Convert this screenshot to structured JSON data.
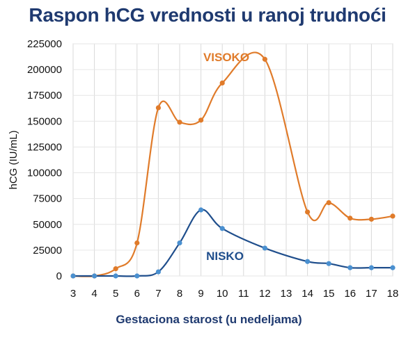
{
  "chart_data": {
    "type": "scatter",
    "title": "Raspon hCG vrednosti u ranoj trudnoći",
    "xlabel": "Gestaciona starost (u nedeljama)",
    "ylabel": "hCG (IU/mL)",
    "x_ticks": [
      3,
      4,
      5,
      6,
      7,
      8,
      9,
      10,
      11,
      12,
      13,
      14,
      15,
      16,
      17,
      18
    ],
    "xlim": [
      3,
      18
    ],
    "ylim": [
      0,
      225000
    ],
    "y_ticks": [
      0,
      25000,
      50000,
      75000,
      100000,
      125000,
      150000,
      175000,
      200000,
      225000
    ],
    "grid": "vertical",
    "trendlines": true,
    "series": [
      {
        "name": "VISOKO",
        "color": "#e07b2a",
        "x": [
          3,
          4,
          5,
          6,
          7,
          8,
          9,
          10,
          12,
          14,
          15,
          16,
          17,
          18
        ],
        "y": [
          0,
          0,
          7000,
          32000,
          163000,
          149000,
          151000,
          187000,
          210000,
          62000,
          71000,
          56000,
          55000,
          58000
        ]
      },
      {
        "name": "NISKO",
        "color": "#1f4e8c",
        "point_color": "#4a90d0",
        "x": [
          3,
          4,
          5,
          6,
          7,
          8,
          9,
          10,
          12,
          14,
          15,
          16,
          17,
          18
        ],
        "y": [
          0,
          0,
          0,
          0,
          4000,
          32000,
          64000,
          46000,
          27000,
          14000,
          12000,
          8000,
          8000,
          8000
        ]
      }
    ]
  }
}
